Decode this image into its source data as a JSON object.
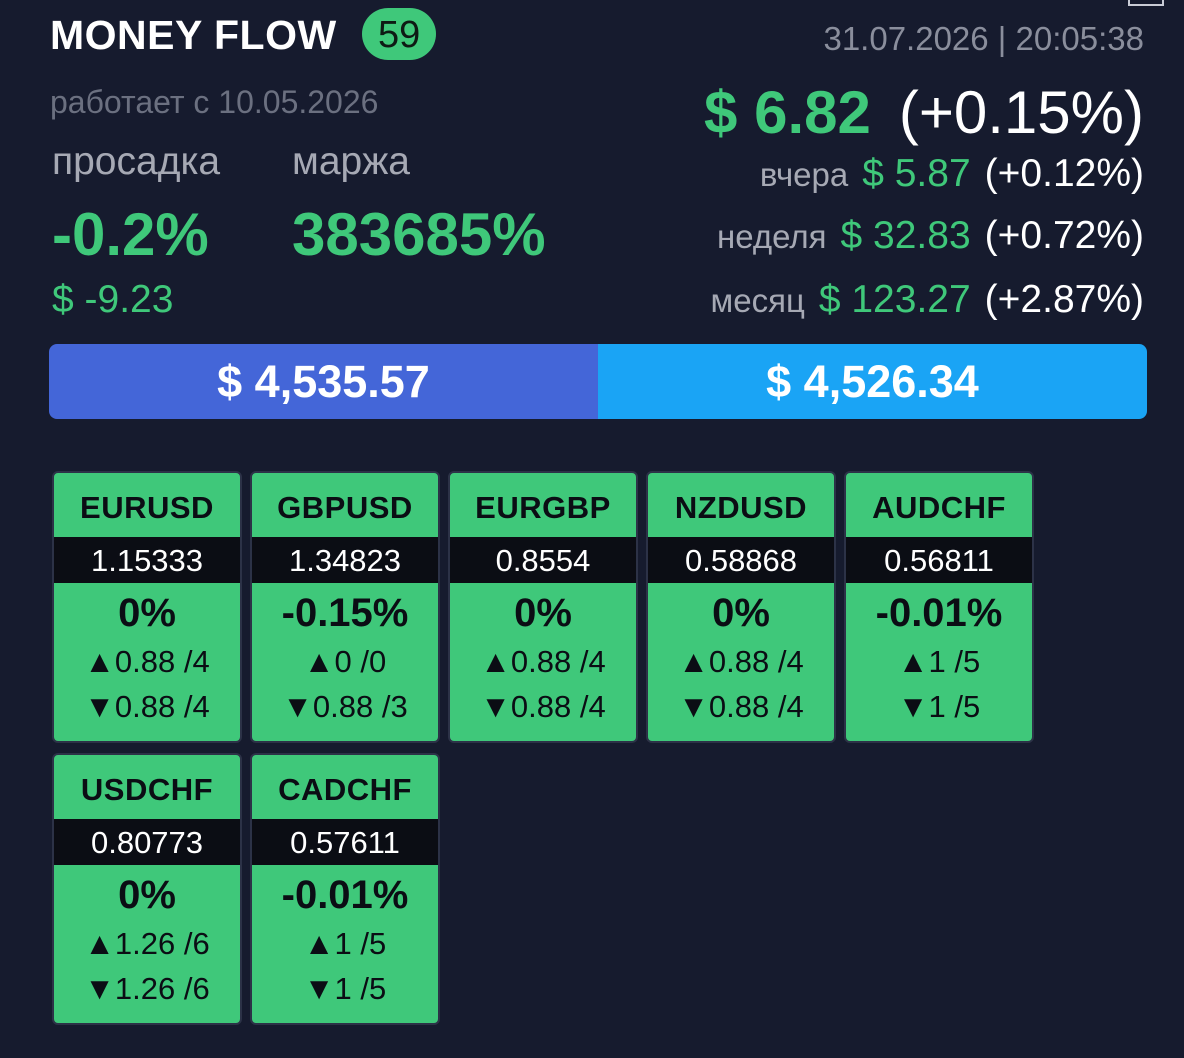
{
  "header": {
    "title": "MONEY FLOW",
    "badge": "59",
    "since": "работает с 10.05.2026",
    "datetime": "31.07.2026 | 20:05:38"
  },
  "drawdown": {
    "label": "просадка",
    "percent": "-0.2%",
    "usd": "$ -9.23"
  },
  "margin": {
    "label": "маржа",
    "percent": "383685%"
  },
  "profit": {
    "today_usd": "$ 6.82",
    "today_pct": "(+0.15%)",
    "yesterday": {
      "label": "вчера",
      "usd": "$ 5.87",
      "pct": "(+0.12%)"
    },
    "week": {
      "label": "неделя",
      "usd": "$ 32.83",
      "pct": "(+0.72%)"
    },
    "month": {
      "label": "месяц",
      "usd": "$ 123.27",
      "pct": "(+2.87%)"
    }
  },
  "balance": {
    "left": "$ 4,535.57",
    "right": "$ 4,526.34"
  },
  "colors": {
    "background": "#161b2e",
    "accent_green": "#3fc87a",
    "bar_blue": "#4466d8",
    "bar_cyan": "#1aa4f5"
  },
  "pairs": [
    {
      "symbol": "EURUSD",
      "price": "1.15333",
      "change": "0%",
      "up": "▲0.88 /4",
      "down": "▼0.88 /4"
    },
    {
      "symbol": "GBPUSD",
      "price": "1.34823",
      "change": "-0.15%",
      "up": "▲0 /0",
      "down": "▼0.88 /3"
    },
    {
      "symbol": "EURGBP",
      "price": "0.8554",
      "change": "0%",
      "up": "▲0.88 /4",
      "down": "▼0.88 /4"
    },
    {
      "symbol": "NZDUSD",
      "price": "0.58868",
      "change": "0%",
      "up": "▲0.88 /4",
      "down": "▼0.88 /4"
    },
    {
      "symbol": "AUDCHF",
      "price": "0.56811",
      "change": "-0.01%",
      "up": "▲1 /5",
      "down": "▼1 /5"
    },
    {
      "symbol": "USDCHF",
      "price": "0.80773",
      "change": "0%",
      "up": "▲1.26 /6",
      "down": "▼1.26 /6"
    },
    {
      "symbol": "CADCHF",
      "price": "0.57611",
      "change": "-0.01%",
      "up": "▲1 /5",
      "down": "▼1 /5"
    }
  ]
}
